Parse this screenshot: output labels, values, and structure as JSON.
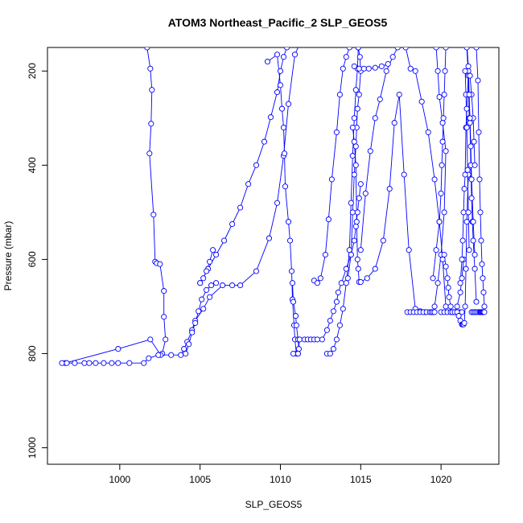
{
  "chart_data": {
    "type": "line",
    "title": "ATOM3 Northeast_Pacific_2 SLP_GEOS5",
    "xlabel": "SLP_GEOS5",
    "ylabel": "Pressure (mbar)",
    "xlim": [
      995.5,
      1023.6
    ],
    "ylim": [
      1035,
      150
    ],
    "y_reversed": true,
    "grid": false,
    "line_color": "#0000ff",
    "marker": "open-circle",
    "xticks": [
      1000,
      1005,
      1010,
      1015,
      1020
    ],
    "yticks": [
      200,
      400,
      600,
      800,
      1000
    ],
    "series": [
      {
        "x": [
          1001.7,
          1001.9,
          1002.0,
          1001.95,
          1001.85,
          1002.1,
          1002.2,
          1002.3,
          1002.5,
          1002.75,
          1002.75,
          1002.85,
          1002.65,
          1002.55,
          1001.9,
          999.9,
          996.6
        ],
        "y": [
          150,
          195,
          240,
          312,
          375,
          505,
          605,
          608,
          610,
          667,
          722,
          770,
          800,
          803,
          770,
          790,
          820
        ]
      },
      {
        "x": [
          996.4,
          996.7,
          997.2,
          997.8,
          998.1,
          998.5,
          999.0,
          999.5,
          999.9,
          1000.6,
          1001.5,
          1001.8,
          1002.4,
          1003.2,
          1003.8,
          1004.0,
          1004.2,
          1004.5,
          1004.7,
          1005.2,
          1005.6,
          1006.4,
          1007.0,
          1007.5,
          1008.5,
          1009.3,
          1009.8,
          1010.2,
          1010.5,
          1010.9,
          1011.5,
          1012.0
        ],
        "y": [
          820,
          820,
          820,
          820,
          820,
          820,
          820,
          820,
          820,
          820,
          820,
          810,
          803,
          803,
          803,
          790,
          775,
          750,
          730,
          705,
          680,
          655,
          655,
          655,
          625,
          555,
          480,
          380,
          270,
          165,
          120,
          100
        ]
      },
      {
        "x": [
          1009.2,
          1009.8,
          1010.0,
          1010.1,
          1010.2,
          1010.25,
          1010.3,
          1010.5,
          1010.6,
          1010.7,
          1010.75,
          1010.85,
          1010.9,
          1011.0,
          1011.1,
          1011.15,
          1011.1,
          1011.0,
          1010.95,
          1010.8,
          1010.75
        ],
        "y": [
          180,
          165,
          230,
          280,
          320,
          375,
          445,
          520,
          560,
          625,
          685,
          740,
          770,
          800,
          800,
          790,
          770,
          740,
          720,
          690,
          650
        ]
      },
      {
        "x": [
          1005.0,
          1005.5,
          1006.0,
          1006.5,
          1007.0,
          1007.5,
          1008.0,
          1008.5,
          1009.0,
          1009.4,
          1009.8,
          1010.0,
          1010.2,
          1010.4
        ],
        "y": [
          650,
          620,
          590,
          560,
          525,
          490,
          440,
          400,
          350,
          298,
          245,
          200,
          170,
          150
        ]
      },
      {
        "x": [
          1005.0,
          1005.2,
          1005.4,
          1005.6,
          1005.8
        ],
        "y": [
          650,
          640,
          625,
          605,
          580
        ]
      },
      {
        "x": [
          1004.1,
          1004.3,
          1004.5,
          1004.7,
          1004.9,
          1005.1,
          1005.4,
          1005.7,
          1006.0
        ],
        "y": [
          800,
          780,
          755,
          735,
          710,
          685,
          665,
          655,
          650
        ]
      },
      {
        "x": [
          1010.8,
          1011.1,
          1011.2,
          1011.5,
          1011.7,
          1011.9,
          1012.1,
          1012.3,
          1012.6,
          1012.9,
          1013.1,
          1013.3,
          1013.5,
          1013.6,
          1013.8,
          1014.1,
          1014.4,
          1014.6,
          1014.7,
          1014.8,
          1014.9,
          1015.0
        ],
        "y": [
          800,
          800,
          770,
          770,
          770,
          770,
          770,
          770,
          770,
          750,
          730,
          710,
          690,
          670,
          650,
          620,
          590,
          560,
          530,
          500,
          470,
          440
        ]
      },
      {
        "x": [
          1012.1,
          1012.3,
          1012.5,
          1012.8,
          1013.0,
          1013.2,
          1013.5,
          1013.7,
          1013.9,
          1014.1,
          1014.3
        ],
        "y": [
          645,
          650,
          640,
          590,
          515,
          430,
          330,
          250,
          195,
          170,
          150
        ]
      },
      {
        "x": [
          1012.9,
          1013.1,
          1013.3,
          1013.5,
          1013.7,
          1013.9,
          1014.1,
          1014.3,
          1014.4,
          1014.5,
          1014.6,
          1014.7,
          1014.8,
          1014.85,
          1014.9
        ],
        "y": [
          800,
          800,
          790,
          770,
          740,
          705,
          650,
          580,
          480,
          380,
          300,
          240,
          195,
          150,
          120
        ]
      },
      {
        "x": [
          1014.2,
          1014.4,
          1014.5,
          1014.6,
          1014.7,
          1014.75,
          1014.8,
          1014.9,
          1015.0,
          1014.95,
          1014.85,
          1014.8
        ],
        "y": [
          640,
          590,
          500,
          420,
          360,
          320,
          280,
          250,
          200,
          170,
          150,
          100
        ]
      },
      {
        "x": [
          1014.5,
          1014.6,
          1014.7,
          1014.75,
          1014.8,
          1014.85,
          1014.9
        ],
        "y": [
          320,
          350,
          400,
          520,
          600,
          620,
          648
        ]
      },
      {
        "x": [
          1015.0,
          1015.3,
          1015.6,
          1015.9,
          1016.2,
          1016.6,
          1017.0,
          1017.3
        ],
        "y": [
          580,
          460,
          370,
          300,
          260,
          200,
          170,
          150
        ]
      },
      {
        "x": [
          1015.0,
          1015.4,
          1015.9,
          1016.4,
          1016.8,
          1017.1,
          1017.4,
          1017.7,
          1018.0,
          1018.4,
          1018.7,
          1019.0
        ],
        "y": [
          648,
          640,
          620,
          560,
          450,
          310,
          250,
          420,
          580,
          705,
          710,
          712
        ]
      },
      {
        "x": [
          1014.6,
          1014.9,
          1015.2,
          1015.5,
          1015.9,
          1016.3,
          1016.7
        ],
        "y": [
          190,
          195,
          195,
          195,
          193,
          190,
          185
        ]
      },
      {
        "x": [
          1017.9,
          1018.1,
          1018.3,
          1018.5,
          1018.7,
          1018.9,
          1019.1,
          1019.3,
          1019.4,
          1019.5,
          1019.6
        ],
        "y": [
          712,
          712,
          712,
          712,
          712,
          712,
          712,
          712,
          712,
          712,
          712
        ]
      },
      {
        "x": [
          1017.8,
          1018.1,
          1018.4,
          1018.8,
          1019.2,
          1019.6,
          1019.9,
          1020.1,
          1020.3
        ],
        "y": [
          150,
          195,
          200,
          265,
          330,
          430,
          520,
          600,
          700
        ]
      },
      {
        "x": [
          1019.6,
          1019.8,
          1020.0,
          1020.2,
          1020.3,
          1020.1,
          1019.9,
          1019.8,
          1019.7
        ],
        "y": [
          700,
          650,
          590,
          500,
          370,
          310,
          255,
          200,
          150
        ]
      },
      {
        "x": [
          1019.5,
          1019.7,
          1019.9,
          1020.0,
          1020.05,
          1020.1,
          1020.15,
          1020.2,
          1020.25,
          1020.3
        ],
        "y": [
          640,
          580,
          520,
          460,
          400,
          350,
          300,
          250,
          200,
          150
        ]
      },
      {
        "x": [
          1020.0,
          1020.2,
          1020.4,
          1020.6,
          1020.8,
          1021.0,
          1021.2,
          1021.3
        ],
        "y": [
          712,
          712,
          712,
          712,
          712,
          712,
          712,
          712
        ]
      },
      {
        "x": [
          1020.2,
          1020.3,
          1020.4,
          1020.45,
          1020.5,
          1020.6,
          1020.7,
          1020.85,
          1021.0,
          1021.2,
          1021.3,
          1021.4
        ],
        "y": [
          590,
          615,
          640,
          660,
          680,
          700,
          712,
          712,
          700,
          670,
          640,
          600
        ]
      },
      {
        "x": [
          1021.0,
          1021.1,
          1021.2,
          1021.3,
          1021.35,
          1021.4,
          1021.45,
          1021.5,
          1021.55,
          1021.6,
          1021.7
        ],
        "y": [
          712,
          720,
          730,
          738,
          738,
          738,
          735,
          700,
          620,
          520,
          420
        ]
      },
      {
        "x": [
          1021.2,
          1021.3,
          1021.35,
          1021.4,
          1021.45,
          1021.5,
          1021.55,
          1021.6,
          1021.65,
          1021.7
        ],
        "y": [
          650,
          600,
          560,
          500,
          450,
          420,
          320,
          280,
          250,
          200
        ]
      },
      {
        "x": [
          1021.6,
          1021.7,
          1021.75,
          1021.8,
          1021.85,
          1021.9,
          1021.95,
          1022.0,
          1022.1,
          1022.2
        ],
        "y": [
          150,
          210,
          300,
          310,
          400,
          470,
          520,
          560,
          620,
          690
        ]
      },
      {
        "x": [
          1021.5,
          1021.55,
          1021.6,
          1021.65,
          1021.7,
          1021.75
        ],
        "y": [
          200,
          250,
          320,
          410,
          500,
          580
        ]
      },
      {
        "x": [
          1021.8,
          1021.9,
          1022.0,
          1022.05,
          1022.1
        ],
        "y": [
          210,
          250,
          300,
          350,
          400
        ]
      },
      {
        "x": [
          1021.9,
          1022.0,
          1022.1,
          1022.2,
          1022.3,
          1022.4,
          1022.45,
          1022.5,
          1022.55,
          1022.6,
          1022.65,
          1022.7
        ],
        "y": [
          712,
          712,
          712,
          712,
          712,
          712,
          712,
          712,
          712,
          712,
          712,
          712
        ]
      },
      {
        "x": [
          1022.2,
          1022.3,
          1022.35,
          1022.4,
          1022.45,
          1022.5,
          1022.55,
          1022.6,
          1022.65,
          1022.7
        ],
        "y": [
          150,
          220,
          330,
          430,
          500,
          560,
          610,
          640,
          670,
          700
        ]
      },
      {
        "x": [
          1021.6,
          1021.7,
          1021.75,
          1021.8,
          1021.85,
          1021.9,
          1022.0,
          1022.1
        ],
        "y": [
          140,
          190,
          250,
          300,
          360,
          430,
          520,
          590
        ]
      }
    ]
  }
}
